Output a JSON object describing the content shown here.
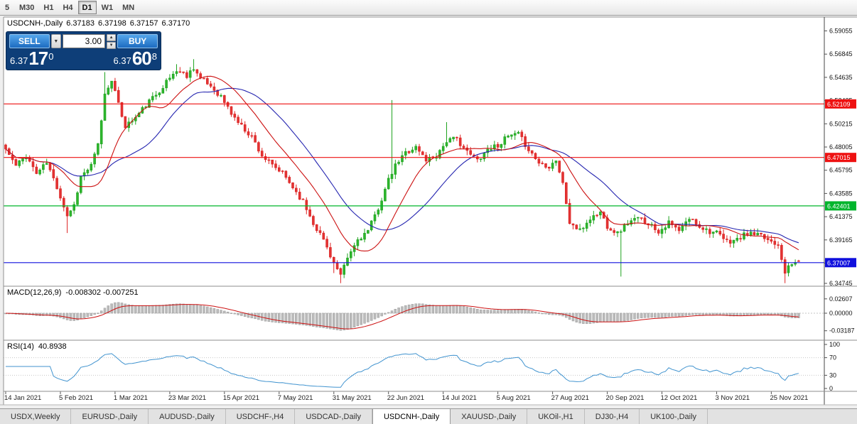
{
  "toolbar": {
    "timeframes": [
      "5",
      "M30",
      "H1",
      "H4",
      "D1",
      "W1",
      "MN"
    ],
    "active": "D1"
  },
  "chart": {
    "symbol_period": "USDCNH-,Daily",
    "open": "6.37183",
    "high": "6.37198",
    "low": "6.37157",
    "close": "6.37170"
  },
  "trade_panel": {
    "sell_label": "SELL",
    "buy_label": "BUY",
    "volume": "3.00",
    "bid": {
      "prefix": "6.37",
      "big": "17",
      "sup": "0"
    },
    "ask": {
      "prefix": "6.37",
      "big": "60",
      "sup": "8"
    }
  },
  "indicators": {
    "macd": {
      "name": "MACD(12,26,9)",
      "values": "-0.008302 -0.007251"
    },
    "rsi": {
      "name": "RSI(14)",
      "value": "40.8938"
    }
  },
  "chart_data": {
    "type": "candlestick",
    "symbol": "USDCNH-",
    "timeframe": "Daily",
    "last_ohlc": {
      "open": 6.37183,
      "high": 6.37198,
      "low": 6.37157,
      "close": 6.3717
    },
    "bid": 6.3717,
    "ask": 6.37608,
    "y_axis_ticks": [
      "6.59055",
      "6.56845",
      "6.54635",
      "6.52425",
      "6.50215",
      "6.48005",
      "6.45795",
      "6.43585",
      "6.41375",
      "6.39165",
      "6.36955",
      "6.34745"
    ],
    "x_labels": [
      "14 Jan 2021",
      "5 Feb 2021",
      "1 Mar 2021",
      "23 Mar 2021",
      "15 Apr 2021",
      "7 May 2021",
      "31 May 2021",
      "22 Jun 2021",
      "14 Jul 2021",
      "5 Aug 2021",
      "27 Aug 2021",
      "20 Sep 2021",
      "12 Oct 2021",
      "3 Nov 2021",
      "25 Nov 2021"
    ],
    "x_label_step": 16,
    "horizontal_lines": [
      {
        "price": 6.52109,
        "label": "6.52109",
        "color": "#ee1111"
      },
      {
        "price": 6.47015,
        "label": "6.47015",
        "color": "#ee1111"
      },
      {
        "price": 6.42401,
        "label": "6.42401",
        "color": "#00b52c"
      },
      {
        "price": 6.37007,
        "label": "6.37007",
        "color": "#1010dd"
      }
    ],
    "candle_count": 233,
    "seed": 11,
    "noise": 0.005,
    "close_anchors": [
      [
        0,
        6.478
      ],
      [
        3,
        6.462
      ],
      [
        6,
        6.472
      ],
      [
        9,
        6.455
      ],
      [
        12,
        6.465
      ],
      [
        15,
        6.442
      ],
      [
        18,
        6.415
      ],
      [
        20,
        6.425
      ],
      [
        22,
        6.452
      ],
      [
        25,
        6.462
      ],
      [
        27,
        6.482
      ],
      [
        29,
        6.53
      ],
      [
        31,
        6.545
      ],
      [
        33,
        6.52
      ],
      [
        35,
        6.5
      ],
      [
        38,
        6.508
      ],
      [
        41,
        6.52
      ],
      [
        44,
        6.53
      ],
      [
        47,
        6.542
      ],
      [
        50,
        6.553
      ],
      [
        53,
        6.548
      ],
      [
        55,
        6.556
      ],
      [
        57,
        6.545
      ],
      [
        60,
        6.538
      ],
      [
        63,
        6.528
      ],
      [
        66,
        6.512
      ],
      [
        69,
        6.5
      ],
      [
        72,
        6.49
      ],
      [
        75,
        6.472
      ],
      [
        78,
        6.462
      ],
      [
        81,
        6.455
      ],
      [
        84,
        6.442
      ],
      [
        87,
        6.428
      ],
      [
        90,
        6.408
      ],
      [
        93,
        6.392
      ],
      [
        96,
        6.37
      ],
      [
        98,
        6.357
      ],
      [
        100,
        6.374
      ],
      [
        103,
        6.392
      ],
      [
        106,
        6.4
      ],
      [
        109,
        6.422
      ],
      [
        112,
        6.448
      ],
      [
        114,
        6.462
      ],
      [
        117,
        6.475
      ],
      [
        120,
        6.48
      ],
      [
        123,
        6.468
      ],
      [
        126,
        6.472
      ],
      [
        129,
        6.486
      ],
      [
        132,
        6.488
      ],
      [
        135,
        6.475
      ],
      [
        138,
        6.468
      ],
      [
        141,
        6.478
      ],
      [
        144,
        6.482
      ],
      [
        147,
        6.49
      ],
      [
        150,
        6.492
      ],
      [
        153,
        6.478
      ],
      [
        156,
        6.465
      ],
      [
        159,
        6.462
      ],
      [
        161,
        6.468
      ],
      [
        163,
        6.445
      ],
      [
        165,
        6.408
      ],
      [
        168,
        6.4
      ],
      [
        171,
        6.412
      ],
      [
        174,
        6.418
      ],
      [
        176,
        6.405
      ],
      [
        179,
        6.398
      ],
      [
        182,
        6.408
      ],
      [
        185,
        6.412
      ],
      [
        188,
        6.408
      ],
      [
        191,
        6.4
      ],
      [
        194,
        6.408
      ],
      [
        197,
        6.4
      ],
      [
        200,
        6.412
      ],
      [
        203,
        6.405
      ],
      [
        206,
        6.4
      ],
      [
        208,
        6.398
      ],
      [
        211,
        6.39
      ],
      [
        214,
        6.392
      ],
      [
        217,
        6.398
      ],
      [
        220,
        6.396
      ],
      [
        223,
        6.392
      ],
      [
        226,
        6.388
      ],
      [
        228,
        6.362
      ],
      [
        230,
        6.368
      ],
      [
        232,
        6.3717
      ]
    ],
    "wick_events": [
      {
        "i": 18,
        "low": 0.012
      },
      {
        "i": 29,
        "high": 0.02
      },
      {
        "i": 50,
        "high": 0.006
      },
      {
        "i": 55,
        "high": 0.008
      },
      {
        "i": 96,
        "low": 0.006
      },
      {
        "i": 98,
        "low": 0.008
      },
      {
        "i": 113,
        "high": 0.068
      },
      {
        "i": 129,
        "high": 0.015
      },
      {
        "i": 180,
        "low": 0.042
      },
      {
        "i": 228,
        "low": 0.012
      }
    ],
    "moving_averages": [
      {
        "period": 14,
        "color": "#cc1111",
        "name": "ma-fast-line"
      },
      {
        "period": 28,
        "color": "#2525b0",
        "name": "ma-slow-line"
      }
    ],
    "candle_colors": {
      "up_fill": "#2db52d",
      "up_stroke": "#1fa31f",
      "down_fill": "#e23333",
      "down_stroke": "#dd2222"
    },
    "macd_panel": {
      "params": [
        12,
        26,
        9
      ],
      "main": -0.008302,
      "signal": -0.007251,
      "axis_ticks": [
        "0.02607",
        "0.00000",
        "-0.03187"
      ],
      "histogram_color": "#bcbcbc",
      "signal_color": "#cc1111"
    },
    "rsi_panel": {
      "period": 14,
      "value": 40.8938,
      "axis_ticks": [
        "100",
        "70",
        "30",
        "0"
      ],
      "levels": [
        70,
        30
      ],
      "line_color": "#4093cf"
    }
  },
  "tabbar": {
    "tabs": [
      "USDX,Weekly",
      "EURUSD-,Daily",
      "AUDUSD-,Daily",
      "USDCHF-,H4",
      "USDCAD-,Daily",
      "USDCNH-,Daily",
      "XAUUSD-,Daily",
      "UKOil-,H1",
      "DJ30-,H4",
      "UK100-,Daily"
    ],
    "active": "USDCNH-,Daily"
  }
}
